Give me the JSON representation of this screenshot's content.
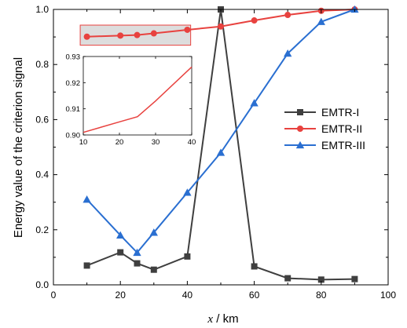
{
  "chart_data": {
    "type": "line",
    "xlabel_italic": "x",
    "xlabel_unit": " / km",
    "ylabel": "Energy value of the criterion signal",
    "xlim": [
      0,
      100
    ],
    "ylim": [
      0,
      1.0
    ],
    "xticks": [
      "0",
      "20",
      "40",
      "60",
      "80",
      "100"
    ],
    "yticks": [
      "0.0",
      "0.2",
      "0.4",
      "0.6",
      "0.8",
      "1.0"
    ],
    "legend_position": "right",
    "series": [
      {
        "name": "EMTR-I",
        "color": "#3f3f3f",
        "marker": "square",
        "x": [
          10,
          20,
          25,
          30,
          40,
          50,
          60,
          70,
          80,
          90
        ],
        "y": [
          0.07,
          0.118,
          0.078,
          0.055,
          0.103,
          1.0,
          0.067,
          0.024,
          0.019,
          0.021
        ]
      },
      {
        "name": "EMTR-II",
        "color": "#e8423f",
        "marker": "circle",
        "x": [
          10,
          20,
          25,
          30,
          40,
          50,
          60,
          70,
          80,
          90
        ],
        "y": [
          0.901,
          0.905,
          0.907,
          0.913,
          0.926,
          0.938,
          0.96,
          0.98,
          0.995,
          1.0
        ]
      },
      {
        "name": "EMTR-III",
        "color": "#2a6fd1",
        "marker": "triangle",
        "x": [
          10,
          20,
          25,
          30,
          40,
          50,
          60,
          70,
          80,
          90
        ],
        "y": [
          0.31,
          0.18,
          0.117,
          0.19,
          0.335,
          0.48,
          0.66,
          0.84,
          0.955,
          1.0
        ]
      }
    ],
    "highlight_region": {
      "x": [
        8,
        41
      ],
      "y": [
        0.87,
        0.943
      ],
      "fill": "#d9d9d9",
      "stroke": "#e8423f"
    },
    "inset": {
      "series_ref": "EMTR-II",
      "xlim": [
        10,
        40
      ],
      "ylim": [
        0.9,
        0.93
      ],
      "xticks": [
        "10",
        "20",
        "30",
        "40"
      ],
      "yticks": [
        "0.90",
        "0.91",
        "0.92",
        "0.93"
      ],
      "x": [
        10,
        20,
        25,
        30,
        40
      ],
      "y": [
        0.901,
        0.905,
        0.907,
        0.913,
        0.926
      ]
    }
  }
}
